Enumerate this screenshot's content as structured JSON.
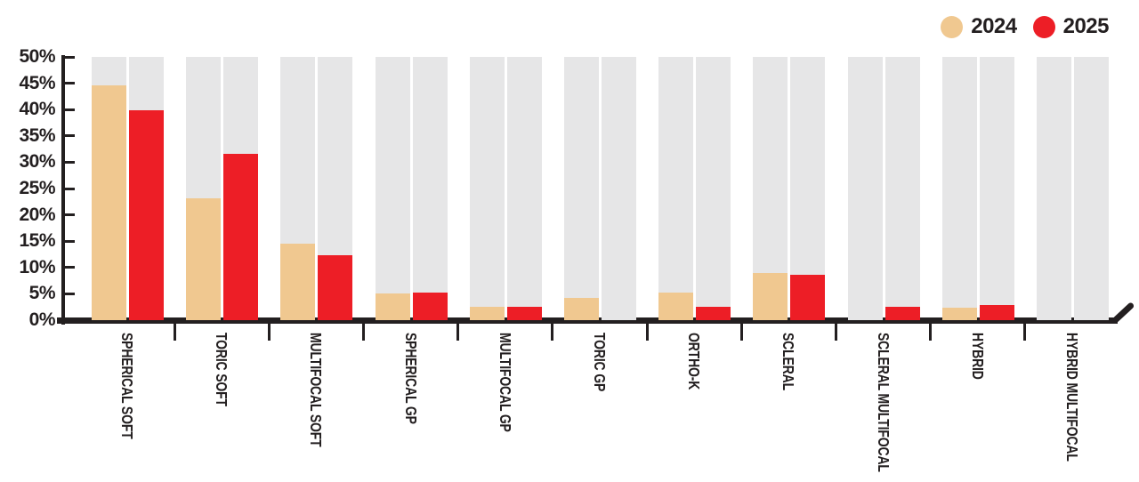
{
  "legend": {
    "items": [
      {
        "label": "2024",
        "color": "#F0C890"
      },
      {
        "label": "2025",
        "color": "#ED1E26"
      }
    ]
  },
  "chart_data": {
    "type": "bar",
    "title": "",
    "xlabel": "",
    "ylabel": "",
    "categories": [
      "SPHERICAL SOFT",
      "TORIC SOFT",
      "MULTIFOCAL SOFT",
      "SPHERICAL GP",
      "MULTIFOCAL GP",
      "TORIC GP",
      "ORTHO-K",
      "SCLERAL",
      "SCLERAL MULTIFOCAL",
      "HYBRID",
      "HYBRID MULTIFOCAL"
    ],
    "series": [
      {
        "name": "2024",
        "color": "#F0C890",
        "values": [
          44.6,
          23.2,
          14.6,
          5.1,
          2.5,
          4.2,
          5.3,
          8.9,
          0,
          2.4,
          0
        ]
      },
      {
        "name": "2025",
        "color": "#ED1E26",
        "values": [
          39.8,
          31.6,
          12.4,
          5.2,
          2.6,
          0,
          2.5,
          8.7,
          2.6,
          2.8,
          0
        ]
      }
    ],
    "value_unit": "%",
    "ylim": [
      0,
      50
    ],
    "ytick_step": 5,
    "ytick_labels": [
      "0%",
      "5%",
      "10%",
      "15%",
      "20%",
      "25%",
      "30%",
      "35%",
      "40%",
      "45%",
      "50%"
    ],
    "grid": false,
    "column_background_color": "#E6E6E7",
    "axis_color": "#231F20",
    "legend_position": "top-right"
  }
}
